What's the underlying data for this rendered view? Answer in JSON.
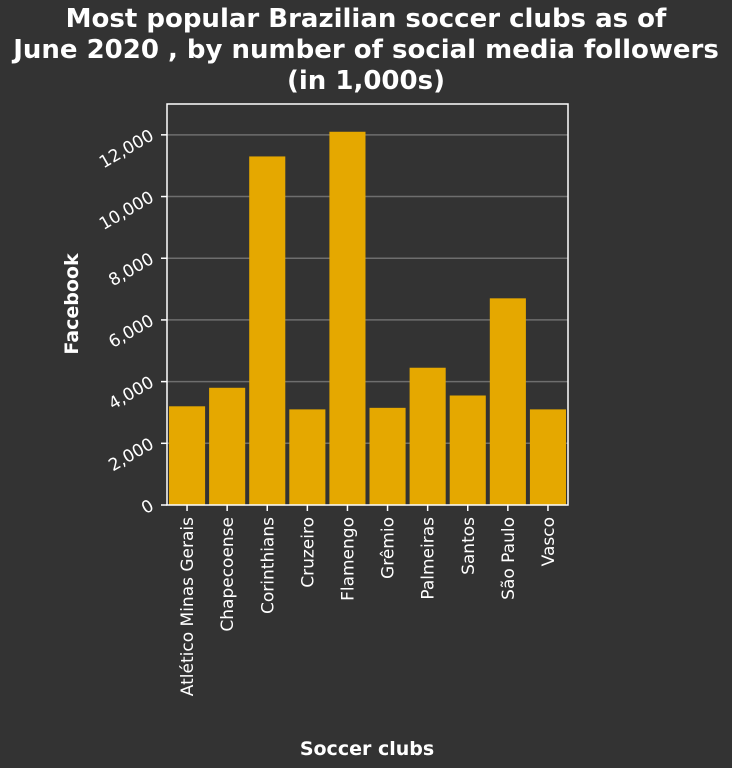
{
  "chart_data": {
    "type": "bar",
    "title_lines": [
      "Most popular Brazilian soccer clubs as of",
      "June 2020 , by number of social media followers",
      "(in 1,000s)"
    ],
    "xlabel": "Soccer clubs",
    "ylabel": "Facebook",
    "categories": [
      "Atlético Minas Gerais",
      "Chapecoense",
      "Corinthians",
      "Cruzeiro",
      "Flamengo",
      "Grêmio",
      "Palmeiras",
      "Santos",
      "São Paulo",
      "Vasco"
    ],
    "values": [
      3200,
      3800,
      11300,
      3100,
      12100,
      3150,
      4450,
      3550,
      6700,
      3100
    ],
    "ylim": [
      0,
      13000
    ],
    "yticks": [
      0,
      2000,
      4000,
      6000,
      8000,
      10000,
      12000
    ],
    "ytick_labels": [
      "0",
      "2,000",
      "4,000",
      "6,000",
      "8,000",
      "10,000",
      "12,000"
    ],
    "grid": true,
    "colors": {
      "bar": "#e5a800",
      "background": "#333333",
      "grid": "#6e6e6e",
      "axis": "#ffffff",
      "text": "#ffffff"
    }
  }
}
